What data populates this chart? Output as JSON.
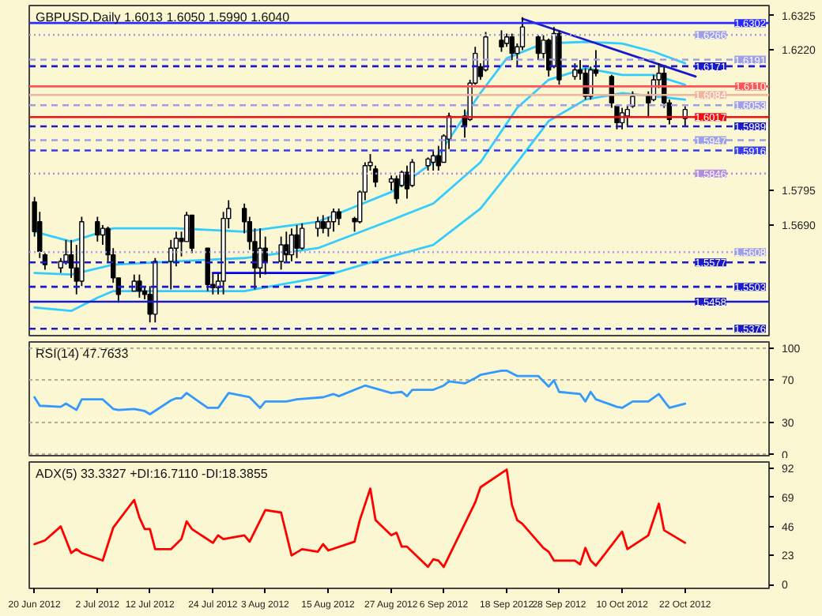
{
  "chart_data": [
    {
      "type": "candlestick",
      "title": "GBPUSD,Daily  1.6013 1.6050 1.5990 1.6040",
      "color": "#000000",
      "x": [
        "2012-06-20",
        "2012-06-21",
        "2012-06-22",
        "2012-06-25",
        "2012-06-26",
        "2012-06-27",
        "2012-06-28",
        "2012-06-29",
        "2012-07-02",
        "2012-07-03",
        "2012-07-04",
        "2012-07-05",
        "2012-07-06",
        "2012-07-09",
        "2012-07-10",
        "2012-07-11",
        "2012-07-12",
        "2012-07-13",
        "2012-07-16",
        "2012-07-17",
        "2012-07-18",
        "2012-07-19",
        "2012-07-20",
        "2012-07-23",
        "2012-07-24",
        "2012-07-25",
        "2012-07-26",
        "2012-07-27",
        "2012-07-30",
        "2012-07-31",
        "2012-08-01",
        "2012-08-02",
        "2012-08-03",
        "2012-08-06",
        "2012-08-07",
        "2012-08-08",
        "2012-08-09",
        "2012-08-10",
        "2012-08-13",
        "2012-08-14",
        "2012-08-15",
        "2012-08-16",
        "2012-08-17",
        "2012-08-20",
        "2012-08-21",
        "2012-08-22",
        "2012-08-23",
        "2012-08-24",
        "2012-08-27",
        "2012-08-28",
        "2012-08-29",
        "2012-08-30",
        "2012-08-31",
        "2012-09-03",
        "2012-09-04",
        "2012-09-05",
        "2012-09-06",
        "2012-09-07",
        "2012-09-10",
        "2012-09-11",
        "2012-09-12",
        "2012-09-13",
        "2012-09-14",
        "2012-09-17",
        "2012-09-18",
        "2012-09-19",
        "2012-09-20",
        "2012-09-21",
        "2012-09-24",
        "2012-09-25",
        "2012-09-26",
        "2012-09-27",
        "2012-09-28",
        "2012-10-01",
        "2012-10-02",
        "2012-10-03",
        "2012-10-04",
        "2012-10-05",
        "2012-10-08",
        "2012-10-09",
        "2012-10-10",
        "2012-10-11",
        "2012-10-12",
        "2012-10-15",
        "2012-10-16",
        "2012-10-17",
        "2012-10-18",
        "2012-10-19",
        "2012-10-22"
      ],
      "ohlc": [
        [
          1.576,
          1.5775,
          1.5655,
          1.567
        ],
        [
          1.57,
          1.573,
          1.559,
          1.561
        ],
        [
          1.56,
          1.5605,
          1.5555,
          1.557
        ],
        [
          1.556,
          1.559,
          1.5545,
          1.558
        ],
        [
          1.558,
          1.5645,
          1.557,
          1.56
        ],
        [
          1.56,
          1.5645,
          1.553,
          1.556
        ],
        [
          1.556,
          1.563,
          1.548,
          1.552
        ],
        [
          1.552,
          1.5715,
          1.5505,
          1.57
        ],
        [
          1.57,
          1.5715,
          1.564,
          1.566
        ],
        [
          1.566,
          1.569,
          1.563,
          1.568
        ],
        [
          1.568,
          1.5685,
          1.558,
          1.56
        ],
        [
          1.56,
          1.562,
          1.5515,
          1.553
        ],
        [
          1.553,
          1.553,
          1.5455,
          1.548
        ],
        [
          1.549,
          1.554,
          1.549,
          1.552
        ],
        [
          1.552,
          1.554,
          1.547,
          1.549
        ],
        [
          1.549,
          1.5505,
          1.5465,
          1.548
        ],
        [
          1.548,
          1.5505,
          1.5395,
          1.542
        ],
        [
          1.542,
          1.559,
          1.5395,
          1.558
        ],
        [
          1.558,
          1.5645,
          1.5495,
          1.562
        ],
        [
          1.562,
          1.567,
          1.5565,
          1.565
        ],
        [
          1.565,
          1.567,
          1.5595,
          1.564
        ],
        [
          1.564,
          1.573,
          1.564,
          1.572
        ],
        [
          1.572,
          1.572,
          1.5605,
          1.562
        ],
        [
          1.562,
          1.562,
          1.549,
          1.551
        ],
        [
          1.551,
          1.5545,
          1.548,
          1.55
        ],
        [
          1.55,
          1.5545,
          1.548,
          1.552
        ],
        [
          1.552,
          1.573,
          1.548,
          1.571
        ],
        [
          1.571,
          1.5765,
          1.568,
          1.574
        ],
        [
          1.574,
          1.5755,
          1.5665,
          1.57
        ],
        [
          1.57,
          1.5715,
          1.5615,
          1.564
        ],
        [
          1.564,
          1.568,
          1.5495,
          1.556
        ],
        [
          1.556,
          1.568,
          1.553,
          1.562
        ],
        [
          1.562,
          1.5655,
          1.554,
          1.558
        ],
        [
          1.558,
          1.5655,
          1.5555,
          1.563
        ],
        [
          1.563,
          1.567,
          1.558,
          1.56
        ],
        [
          1.56,
          1.568,
          1.558,
          1.566
        ],
        [
          1.566,
          1.569,
          1.559,
          1.562
        ],
        [
          1.562,
          1.5695,
          1.5615,
          1.568
        ],
        [
          1.568,
          1.5715,
          1.5655,
          1.57
        ],
        [
          1.57,
          1.572,
          1.5665,
          1.568
        ],
        [
          1.568,
          1.5715,
          1.5655,
          1.57
        ],
        [
          1.57,
          1.574,
          1.567,
          1.573
        ],
        [
          1.573,
          1.574,
          1.569,
          1.571
        ],
        [
          1.571,
          1.5715,
          1.567,
          1.57
        ],
        [
          1.57,
          1.5795,
          1.5695,
          1.579
        ],
        [
          1.579,
          1.588,
          1.5765,
          1.587
        ],
        [
          1.587,
          1.5905,
          1.5855,
          1.588
        ],
        [
          1.586,
          1.587,
          1.5805,
          1.582
        ],
        [
          1.582,
          1.584,
          1.5795,
          1.583
        ],
        [
          1.583,
          1.584,
          1.5755,
          1.577
        ],
        [
          1.581,
          1.5855,
          1.5805,
          1.585
        ],
        [
          1.585,
          1.587,
          1.577,
          1.58
        ],
        [
          1.581,
          1.589,
          1.5805,
          1.588
        ],
        [
          1.587,
          1.5895,
          1.5855,
          1.589
        ],
        [
          1.588,
          1.5915,
          1.5855,
          1.59
        ],
        [
          1.59,
          1.593,
          1.5855,
          1.587
        ],
        [
          1.588,
          1.5965,
          1.588,
          1.596
        ],
        [
          1.595,
          1.603,
          1.592,
          1.602
        ],
        [
          1.602,
          1.604,
          1.5955,
          1.599
        ],
        [
          1.601,
          1.613,
          1.6005,
          1.612
        ],
        [
          1.612,
          1.623,
          1.6115,
          1.621
        ],
        [
          1.617,
          1.618,
          1.613,
          1.614
        ],
        [
          1.616,
          1.6275,
          1.6155,
          1.626
        ],
        [
          1.625,
          1.628,
          1.6215,
          1.623
        ],
        [
          1.624,
          1.627,
          1.623,
          1.626
        ],
        [
          1.626,
          1.627,
          1.619,
          1.621
        ],
        [
          1.621,
          1.624,
          1.617,
          1.623
        ],
        [
          1.623,
          1.632,
          1.622,
          1.629
        ],
        [
          1.626,
          1.6265,
          1.619,
          1.621
        ],
        [
          1.621,
          1.6265,
          1.6195,
          1.625
        ],
        [
          1.625,
          1.6255,
          1.614,
          1.616
        ],
        [
          1.617,
          1.629,
          1.6165,
          1.627
        ],
        [
          1.627,
          1.628,
          1.6115,
          1.613
        ],
        [
          1.614,
          1.618,
          1.613,
          1.616
        ],
        [
          1.616,
          1.619,
          1.613,
          1.615
        ],
        [
          1.615,
          1.6165,
          1.607,
          1.608
        ],
        [
          1.608,
          1.617,
          1.607,
          1.616
        ],
        [
          1.616,
          1.622,
          1.614,
          1.615
        ],
        [
          1.614,
          1.6145,
          1.6045,
          1.606
        ],
        [
          1.605,
          1.6055,
          1.598,
          1.6
        ],
        [
          1.6,
          1.6045,
          1.598,
          1.603
        ],
        [
          1.602,
          1.6055,
          1.599,
          1.604
        ],
        [
          1.605,
          1.6095,
          1.6045,
          1.608
        ],
        [
          1.608,
          1.6095,
          1.602,
          1.606
        ],
        [
          1.607,
          1.6145,
          1.6065,
          1.613
        ],
        [
          1.613,
          1.618,
          1.6105,
          1.615
        ],
        [
          1.615,
          1.617,
          1.6045,
          1.606
        ],
        [
          1.606,
          1.607,
          1.5995,
          1.601
        ],
        [
          1.6013,
          1.605,
          1.599,
          1.604
        ]
      ],
      "series": [
        {
          "type": "line",
          "color": "#33ccff",
          "x": [
            "2012-06-20",
            "2012-06-27",
            "2012-07-05",
            "2012-07-17",
            "2012-07-30",
            "2012-08-13",
            "2012-08-27",
            "2012-09-04",
            "2012-09-13",
            "2012-09-18",
            "2012-09-25",
            "2012-10-03",
            "2012-10-10",
            "2012-10-16",
            "2012-10-22"
          ],
          "values": [
            1.567,
            1.564,
            1.568,
            1.568,
            1.567,
            1.57,
            1.579,
            1.588,
            1.609,
            1.6195,
            1.624,
            1.6245,
            1.624,
            1.6215,
            1.618
          ]
        },
        {
          "type": "line",
          "color": "#33ccff",
          "x": [
            "2012-06-20",
            "2012-06-27",
            "2012-07-05",
            "2012-07-17",
            "2012-07-30",
            "2012-08-13",
            "2012-08-27",
            "2012-09-04",
            "2012-09-13",
            "2012-09-20",
            "2012-09-26",
            "2012-10-03",
            "2012-10-10",
            "2012-10-16",
            "2012-10-22"
          ],
          "values": [
            1.5545,
            1.554,
            1.557,
            1.558,
            1.559,
            1.562,
            1.5705,
            1.5755,
            1.588,
            1.6045,
            1.613,
            1.6165,
            1.6145,
            1.6145,
            1.6115
          ]
        },
        {
          "type": "line",
          "color": "#33ccff",
          "x": [
            "2012-06-20",
            "2012-06-27",
            "2012-07-02",
            "2012-07-05",
            "2012-07-17",
            "2012-07-30",
            "2012-08-13",
            "2012-08-27",
            "2012-09-04",
            "2012-09-13",
            "2012-09-20",
            "2012-09-26",
            "2012-10-03",
            "2012-10-10",
            "2012-10-16",
            "2012-10-22"
          ],
          "values": [
            1.544,
            1.543,
            1.547,
            1.549,
            1.549,
            1.549,
            1.553,
            1.5595,
            1.563,
            1.574,
            1.588,
            1.6005,
            1.607,
            1.609,
            1.608,
            1.607
          ]
        },
        {
          "type": "line",
          "color": "#1a1acc",
          "x": [
            "2012-09-21",
            "2012-10-24"
          ],
          "values": [
            1.6315,
            1.614
          ]
        },
        {
          "type": "line",
          "color": "#0000ff",
          "x": [
            "2012-07-24",
            "2012-08-16"
          ],
          "values": [
            1.5545,
            1.5545
          ]
        }
      ],
      "xlim": [
        "2012-06-19",
        "2012-11-07"
      ],
      "ylim": [
        1.5355,
        1.6355
      ],
      "yticks": [
        1.6325,
        {
          "value": 1.622,
          "label": "1.6220"
        },
        1.5795,
        {
          "value": 1.569,
          "label": "1.5690"
        }
      ],
      "tick_labels": "y",
      "ref_lines": [
        {
          "axis": "y",
          "value": 1.6302,
          "label": "1.6302",
          "color": "#2a2aff",
          "line_style": "solid"
        },
        {
          "axis": "y",
          "value": 1.6266,
          "label": "1.6266",
          "color": "#9f9fe8",
          "line_style": "dotted"
        },
        {
          "axis": "y",
          "value": 1.6191,
          "label": "1.6191",
          "color": "#9f9fe8",
          "line_style": "dashed"
        },
        {
          "axis": "y",
          "value": 1.6171,
          "label": "1.6171",
          "color": "#1a1acc",
          "line_style": "dashed"
        },
        {
          "axis": "y",
          "value": 1.611,
          "label": "1.6110",
          "color": "#ff5555",
          "line_style": "solid"
        },
        {
          "axis": "y",
          "value": 1.6084,
          "label": "1.6084",
          "color": "#f2b49a",
          "line_style": "solid"
        },
        {
          "axis": "y",
          "value": 1.6053,
          "label": "1.6053",
          "color": "#9f9fe8",
          "line_style": "dashed"
        },
        {
          "axis": "y",
          "value": 1.6017,
          "label": "1.6017",
          "color": "#ee1111",
          "line_style": "solid"
        },
        {
          "axis": "y",
          "value": 1.5989,
          "label": "1.5989",
          "color": "#1a1acc",
          "line_style": "dashed"
        },
        {
          "axis": "y",
          "value": 1.5947,
          "label": "1.5947",
          "color": "#9f9fe8",
          "line_style": "dashed"
        },
        {
          "axis": "y",
          "value": 1.5916,
          "label": "1.5916",
          "color": "#3a3aee",
          "line_style": "dashed"
        },
        {
          "axis": "y",
          "value": 1.5846,
          "label": "1.5846",
          "color": "#b38be0",
          "line_style": "dotted"
        },
        {
          "axis": "y",
          "value": 1.5608,
          "label": "1.5608",
          "color": "#9f9fe8",
          "line_style": "dotted"
        },
        {
          "axis": "y",
          "value": 1.5577,
          "label": "1.5577",
          "color": "#1a1acc",
          "line_style": "dashed"
        },
        {
          "axis": "y",
          "value": 1.5503,
          "label": "1.5503",
          "color": "#1a1acc",
          "line_style": "dashed"
        },
        {
          "axis": "y",
          "value": 1.5458,
          "label": "1.5458",
          "color": "#1a1acc",
          "line_style": "solid"
        },
        {
          "axis": "y",
          "value": 1.5376,
          "label": "1.5376",
          "color": "#1a1acc",
          "line_style": "dashed"
        }
      ]
    },
    {
      "type": "line",
      "title": "RSI(14) 47.7633",
      "series": [
        {
          "color": "#3399ff",
          "x": [
            "2012-06-20",
            "2012-06-21",
            "2012-06-25",
            "2012-06-26",
            "2012-06-28",
            "2012-06-29",
            "2012-07-03",
            "2012-07-05",
            "2012-07-06",
            "2012-07-09",
            "2012-07-11",
            "2012-07-12",
            "2012-07-16",
            "2012-07-17",
            "2012-07-18",
            "2012-07-19",
            "2012-07-23",
            "2012-07-25",
            "2012-07-27",
            "2012-07-31",
            "2012-08-02",
            "2012-08-03",
            "2012-08-07",
            "2012-08-09",
            "2012-08-14",
            "2012-08-16",
            "2012-08-17",
            "2012-08-22",
            "2012-08-27",
            "2012-08-29",
            "2012-08-30",
            "2012-08-31",
            "2012-09-04",
            "2012-09-06",
            "2012-09-07",
            "2012-09-10",
            "2012-09-12",
            "2012-09-13",
            "2012-09-17",
            "2012-09-18",
            "2012-09-20",
            "2012-09-24",
            "2012-09-26",
            "2012-09-27",
            "2012-09-28",
            "2012-10-02",
            "2012-10-03",
            "2012-10-04",
            "2012-10-05",
            "2012-10-09",
            "2012-10-10",
            "2012-10-12",
            "2012-10-15",
            "2012-10-17",
            "2012-10-19",
            "2012-10-22"
          ],
          "values": [
            54,
            46,
            45,
            48,
            42,
            52,
            52,
            43,
            42,
            43,
            41,
            38,
            51,
            53,
            53,
            58,
            44,
            44,
            58,
            54,
            44,
            50,
            50,
            52,
            54,
            57,
            55,
            65,
            58,
            59,
            55,
            61,
            61,
            65,
            69,
            67,
            72,
            75,
            79,
            79,
            74,
            74,
            64,
            70,
            59,
            57,
            50,
            59,
            52,
            45,
            44,
            50,
            50,
            57,
            44,
            48
          ]
        }
      ],
      "xlim": [
        "2012-06-19",
        "2012-11-07"
      ],
      "ylim": [
        -1,
        106
      ],
      "yticks": [
        100,
        70,
        30,
        0
      ],
      "grid": "y",
      "tick_labels": "y"
    },
    {
      "type": "line",
      "title": "ADX(5) 33.3327 +DI:16.7110 -DI:18.3855",
      "series": [
        {
          "color": "#ff0000",
          "x": [
            "2012-06-20",
            "2012-06-22",
            "2012-06-25",
            "2012-06-27",
            "2012-06-28",
            "2012-06-29",
            "2012-07-03",
            "2012-07-05",
            "2012-07-09",
            "2012-07-10",
            "2012-07-11",
            "2012-07-12",
            "2012-07-13",
            "2012-07-16",
            "2012-07-18",
            "2012-07-19",
            "2012-07-20",
            "2012-07-24",
            "2012-07-25",
            "2012-07-26",
            "2012-07-30",
            "2012-07-31",
            "2012-08-03",
            "2012-08-06",
            "2012-08-08",
            "2012-08-10",
            "2012-08-13",
            "2012-08-14",
            "2012-08-15",
            "2012-08-20",
            "2012-08-21",
            "2012-08-23",
            "2012-08-24",
            "2012-08-27",
            "2012-08-28",
            "2012-08-29",
            "2012-08-30",
            "2012-09-03",
            "2012-09-04",
            "2012-09-05",
            "2012-09-06",
            "2012-09-12",
            "2012-09-13",
            "2012-09-18",
            "2012-09-19",
            "2012-09-20",
            "2012-09-21",
            "2012-09-25",
            "2012-09-26",
            "2012-09-27",
            "2012-10-01",
            "2012-10-02",
            "2012-10-03",
            "2012-10-04",
            "2012-10-05",
            "2012-10-10",
            "2012-10-11",
            "2012-10-15",
            "2012-10-17",
            "2012-10-18",
            "2012-10-22"
          ],
          "values": [
            32,
            35,
            46,
            25,
            28,
            25,
            19,
            45,
            67,
            53,
            44,
            44,
            28,
            28,
            36,
            50,
            44,
            33,
            39,
            36,
            39,
            34,
            59,
            57,
            23,
            28,
            26,
            32,
            27,
            34,
            51,
            76,
            51,
            39,
            41,
            30,
            30,
            14,
            20,
            19,
            14,
            65,
            77,
            91,
            63,
            51,
            48,
            29,
            26,
            19,
            19,
            16,
            29,
            19,
            15,
            42,
            28,
            39,
            64,
            43,
            33
          ]
        }
      ],
      "xlim": [
        "2012-06-19",
        "2012-11-07"
      ],
      "ylim": [
        -3,
        97
      ],
      "yticks": [
        92,
        69,
        46,
        23,
        0
      ],
      "xticks": [
        {
          "value": "2012-06-20",
          "label": "20 Jun 2012"
        },
        {
          "value": "2012-07-02",
          "label": "2 Jul 2012"
        },
        {
          "value": "2012-07-12",
          "label": "12 Jul 2012"
        },
        {
          "value": "2012-07-24",
          "label": "24 Jul 2012"
        },
        {
          "value": "2012-08-03",
          "label": "3 Aug 2012"
        },
        {
          "value": "2012-08-15",
          "label": "15 Aug 2012"
        },
        {
          "value": "2012-08-27",
          "label": "27 Aug 2012"
        },
        {
          "value": "2012-09-06",
          "label": "6 Sep 2012"
        },
        {
          "value": "2012-09-18",
          "label": "18 Sep 2012"
        },
        {
          "value": "2012-09-28",
          "label": "28 Sep 2012"
        },
        {
          "value": "2012-10-10",
          "label": "10 Oct 2012"
        },
        {
          "value": "2012-10-22",
          "label": "22 Oct 2012"
        }
      ]
    }
  ]
}
